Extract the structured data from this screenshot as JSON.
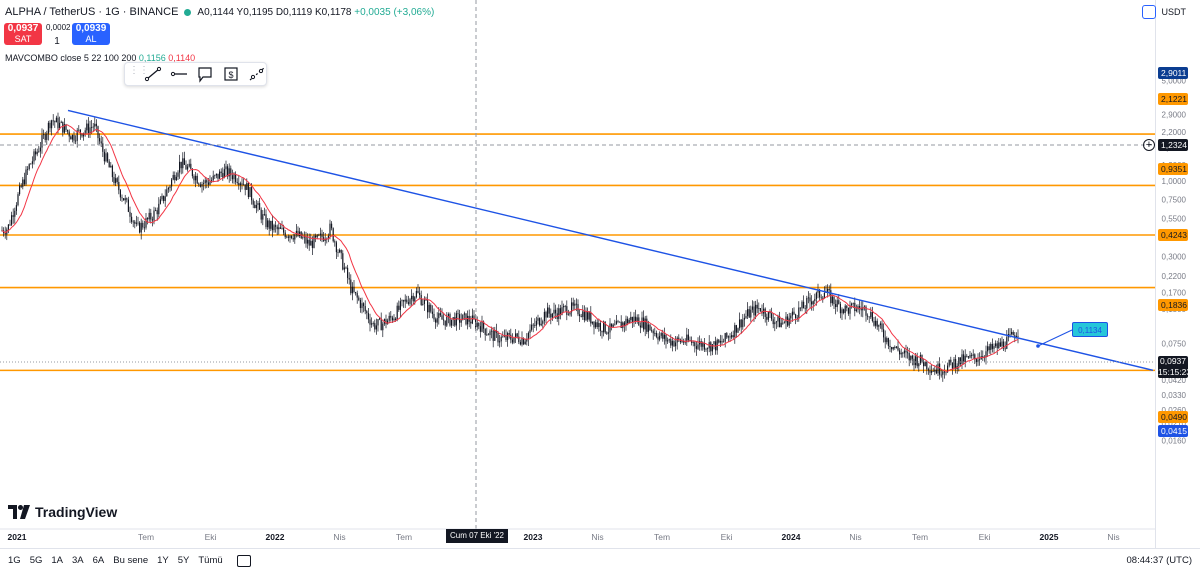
{
  "header": {
    "symbol": "ALPHA / TetherUS · 1G · BINANCE",
    "open": "A0,1144",
    "high": "Y0,1195",
    "low": "D0,1119",
    "close": "K0,1178",
    "change": "+0,0035 (+3,06%)"
  },
  "trade": {
    "sell_price": "0,0937",
    "sell_label": "SAT",
    "spread": "0,0002",
    "quantity": "1",
    "buy_price": "0,0939",
    "buy_label": "AL"
  },
  "indicator": {
    "name": "MAVCOMBO close 5 22 100 200",
    "v1": "0,1156",
    "v2": "0,1140"
  },
  "currency": "USDT",
  "price_tags": {
    "t2_9011": "2,9011",
    "t2_1221": "2,1221",
    "t1_2324": "1,2324",
    "t0_9351": "0,9351",
    "t0_4243": "0,4243",
    "t0_1836": "0,1836",
    "current": "0,0937",
    "countdown": "15:15:23",
    "t0_0490": "0,0490",
    "t0_0415": "0,0415"
  },
  "callout": "0,1134",
  "logo_text": "TradingView",
  "crosshair_date": "Cum 07 Eki '22",
  "footer": {
    "timeframes": [
      "1G",
      "5G",
      "1A",
      "3A",
      "6A",
      "Bu sene",
      "1Y",
      "5Y",
      "Tümü"
    ],
    "clock": "08:44:37 (UTC)"
  },
  "colors": {
    "up": "#22ab94",
    "down": "#f23645",
    "hline": "#ff9800",
    "trendline": "#1e53e5",
    "ma": "#f23645"
  },
  "chart_data": {
    "type": "candlestick",
    "scale": "log",
    "y_ticks": [
      "5,0000",
      "3,8000",
      "2,9000",
      "2,2000",
      "1,7000",
      "1,3000",
      "1,0000",
      "0,7500",
      "0,5500",
      "0,4200",
      "0,3000",
      "0,2200",
      "0,1700",
      "0,1300",
      "0,0750",
      "0,0550",
      "0,0420",
      "0,0330",
      "0,0260",
      "0,0210",
      "0,0160"
    ],
    "x_ticks": [
      "2021",
      "Tem",
      "Eki",
      "2022",
      "Nis",
      "Tem",
      "2023",
      "Nis",
      "Tem",
      "Eki",
      "2024",
      "Nis",
      "Tem",
      "Eki",
      "2025",
      "Nis"
    ],
    "horizontal_levels": [
      2.1221,
      0.9351,
      0.4243,
      0.1836,
      0.049
    ],
    "trendline": {
      "from": {
        "date": "2021-03",
        "price": 3.3
      },
      "to": {
        "date": "2024-12",
        "price": 0.082
      }
    },
    "close_path": [
      {
        "date": "2021-01",
        "price": 0.45
      },
      {
        "date": "2021-02",
        "price": 1.3
      },
      {
        "date": "2021-03",
        "price": 2.8
      },
      {
        "date": "2021-04",
        "price": 1.9
      },
      {
        "date": "2021-05",
        "price": 2.6
      },
      {
        "date": "2021-06",
        "price": 0.95
      },
      {
        "date": "2021-07",
        "price": 0.45
      },
      {
        "date": "2021-08",
        "price": 0.7
      },
      {
        "date": "2021-09",
        "price": 1.25
      },
      {
        "date": "2021-10",
        "price": 1.0
      },
      {
        "date": "2021-11",
        "price": 1.2
      },
      {
        "date": "2021-12",
        "price": 0.9
      },
      {
        "date": "2022-01",
        "price": 0.55
      },
      {
        "date": "2022-02",
        "price": 0.42
      },
      {
        "date": "2022-03",
        "price": 0.36
      },
      {
        "date": "2022-04",
        "price": 0.5
      },
      {
        "date": "2022-05",
        "price": 0.16
      },
      {
        "date": "2022-06",
        "price": 0.105
      },
      {
        "date": "2022-07",
        "price": 0.12
      },
      {
        "date": "2022-08",
        "price": 0.16
      },
      {
        "date": "2022-09",
        "price": 0.12
      },
      {
        "date": "2022-10",
        "price": 0.105
      },
      {
        "date": "2022-11",
        "price": 0.1
      },
      {
        "date": "2022-12",
        "price": 0.085
      },
      {
        "date": "2023-01",
        "price": 0.075
      },
      {
        "date": "2023-02",
        "price": 0.13
      },
      {
        "date": "2023-03",
        "price": 0.13
      },
      {
        "date": "2023-04",
        "price": 0.11
      },
      {
        "date": "2023-05",
        "price": 0.1
      },
      {
        "date": "2023-06",
        "price": 0.105
      },
      {
        "date": "2023-07",
        "price": 0.095
      },
      {
        "date": "2023-08",
        "price": 0.08
      },
      {
        "date": "2023-09",
        "price": 0.07
      },
      {
        "date": "2023-10",
        "price": 0.078
      },
      {
        "date": "2023-11",
        "price": 0.1
      },
      {
        "date": "2023-12",
        "price": 0.13
      },
      {
        "date": "2024-01",
        "price": 0.11
      },
      {
        "date": "2024-02",
        "price": 0.125
      },
      {
        "date": "2024-03",
        "price": 0.18
      },
      {
        "date": "2024-04",
        "price": 0.13
      },
      {
        "date": "2024-05",
        "price": 0.12
      },
      {
        "date": "2024-06",
        "price": 0.082
      },
      {
        "date": "2024-07",
        "price": 0.056
      },
      {
        "date": "2024-08",
        "price": 0.05
      },
      {
        "date": "2024-09",
        "price": 0.058
      },
      {
        "date": "2024-10",
        "price": 0.055
      },
      {
        "date": "2024-11",
        "price": 0.075
      },
      {
        "date": "2024-12",
        "price": 0.0937
      }
    ]
  }
}
